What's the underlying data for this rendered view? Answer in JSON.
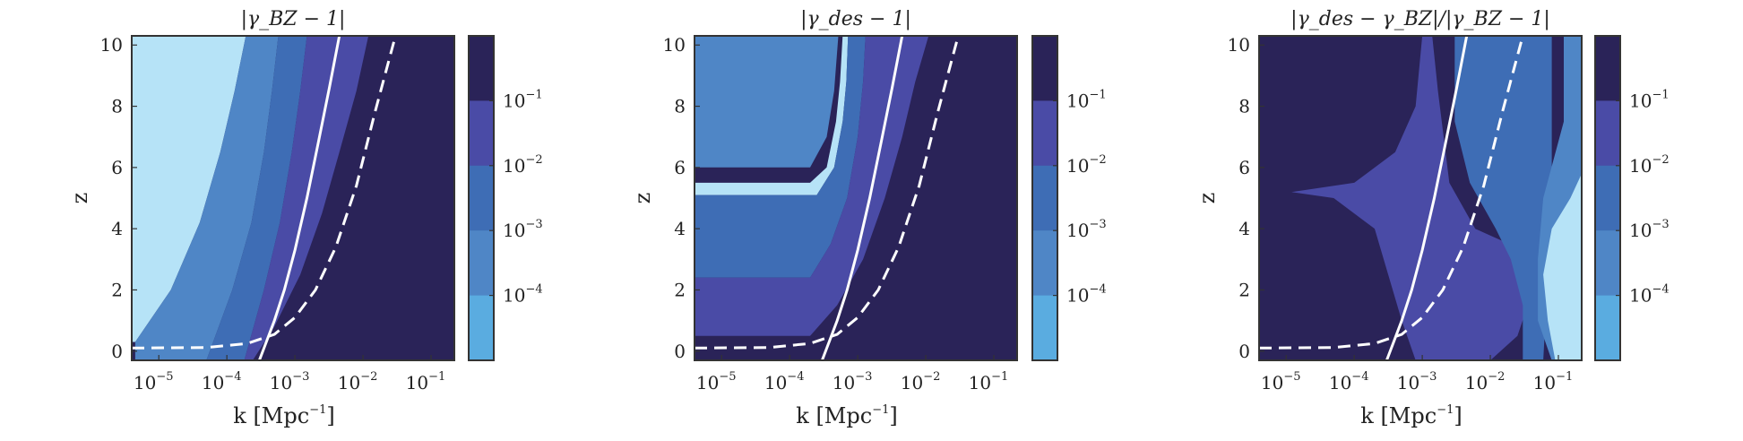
{
  "chart_data": [
    {
      "type": "heatmap",
      "title": "|γ_BZ − 1|",
      "xlabel": "k   [Mpc⁻¹]",
      "ylabel": "z",
      "x_scale": "log",
      "xlim": [
        4e-06,
        0.22
      ],
      "ylim": [
        -0.3,
        10.3
      ],
      "x_ticks": [
        {
          "value": 1e-05,
          "base": "10",
          "exp": "−5"
        },
        {
          "value": 0.0001,
          "base": "10",
          "exp": "−4"
        },
        {
          "value": 0.001,
          "base": "10",
          "exp": "−3"
        },
        {
          "value": 0.01,
          "base": "10",
          "exp": "−2"
        },
        {
          "value": 0.1,
          "base": "10",
          "exp": "−1"
        }
      ],
      "y_ticks": [
        "0",
        "2",
        "4",
        "6",
        "8",
        "10"
      ],
      "colorbar_ticks": [
        {
          "value": 0.1,
          "base": "10",
          "exp": "−1"
        },
        {
          "value": 0.01,
          "base": "10",
          "exp": "−2"
        },
        {
          "value": 0.001,
          "base": "10",
          "exp": "−3"
        },
        {
          "value": 0.0001,
          "base": "10",
          "exp": "−4"
        }
      ],
      "colors": [
        "#b6e3f7",
        "#4f86c6",
        "#3e6db5",
        "#4a4ba6",
        "#2a2358"
      ],
      "lines": [
        {
          "style": "solid",
          "color": "#ffffff",
          "k": [
            0.0003,
            0.00038,
            0.0005,
            0.0007,
            0.001,
            0.0015,
            0.0022,
            0.0032,
            0.0045
          ],
          "z": [
            -0.3,
            0.3,
            1.0,
            2.0,
            3.3,
            5.0,
            6.8,
            8.6,
            10.3
          ]
        },
        {
          "style": "dashed",
          "color": "#ffffff",
          "k": [
            4e-06,
            5e-05,
            0.0002,
            0.0005,
            0.001,
            0.002,
            0.004,
            0.008,
            0.015,
            0.03
          ],
          "z": [
            0.1,
            0.12,
            0.25,
            0.55,
            1.1,
            2.0,
            3.4,
            5.4,
            7.8,
            10.3
          ]
        }
      ]
    },
    {
      "type": "heatmap",
      "title": "|γ_des − 1|",
      "xlabel": "k   [Mpc⁻¹]",
      "ylabel": "z",
      "x_scale": "log",
      "xlim": [
        4e-06,
        0.22
      ],
      "ylim": [
        -0.3,
        10.3
      ],
      "x_ticks": [
        {
          "value": 1e-05,
          "base": "10",
          "exp": "−5"
        },
        {
          "value": 0.0001,
          "base": "10",
          "exp": "−4"
        },
        {
          "value": 0.001,
          "base": "10",
          "exp": "−3"
        },
        {
          "value": 0.01,
          "base": "10",
          "exp": "−2"
        },
        {
          "value": 0.1,
          "base": "10",
          "exp": "−1"
        }
      ],
      "y_ticks": [
        "0",
        "2",
        "4",
        "6",
        "8",
        "10"
      ],
      "colorbar_ticks": [
        {
          "value": 0.1,
          "base": "10",
          "exp": "−1"
        },
        {
          "value": 0.01,
          "base": "10",
          "exp": "−2"
        },
        {
          "value": 0.001,
          "base": "10",
          "exp": "−3"
        },
        {
          "value": 0.0001,
          "base": "10",
          "exp": "−4"
        }
      ],
      "colors": [
        "#b6e3f7",
        "#4f86c6",
        "#3e6db5",
        "#4a4ba6",
        "#2a2358"
      ],
      "lines": [
        {
          "style": "solid",
          "color": "#ffffff",
          "k": [
            0.0003,
            0.00038,
            0.0005,
            0.0007,
            0.001,
            0.0015,
            0.0022,
            0.0032,
            0.0045
          ],
          "z": [
            -0.3,
            0.3,
            1.0,
            2.0,
            3.3,
            5.0,
            6.8,
            8.6,
            10.3
          ]
        },
        {
          "style": "dashed",
          "color": "#ffffff",
          "k": [
            4e-06,
            5e-05,
            0.0002,
            0.0005,
            0.001,
            0.002,
            0.004,
            0.008,
            0.015,
            0.03
          ],
          "z": [
            0.1,
            0.12,
            0.25,
            0.55,
            1.1,
            2.0,
            3.4,
            5.4,
            7.8,
            10.3
          ]
        }
      ]
    },
    {
      "type": "heatmap",
      "title": "|γ_des − γ_BZ|/|γ_BZ − 1|",
      "xlabel": "k   [Mpc⁻¹]",
      "ylabel": "z",
      "x_scale": "log",
      "xlim": [
        4e-06,
        0.22
      ],
      "ylim": [
        -0.3,
        10.3
      ],
      "x_ticks": [
        {
          "value": 1e-05,
          "base": "10",
          "exp": "−5"
        },
        {
          "value": 0.0001,
          "base": "10",
          "exp": "−4"
        },
        {
          "value": 0.001,
          "base": "10",
          "exp": "−3"
        },
        {
          "value": 0.01,
          "base": "10",
          "exp": "−2"
        },
        {
          "value": 0.1,
          "base": "10",
          "exp": "−1"
        }
      ],
      "y_ticks": [
        "0",
        "2",
        "4",
        "6",
        "8",
        "10"
      ],
      "colorbar_ticks": [
        {
          "value": 0.1,
          "base": "10",
          "exp": "−1"
        },
        {
          "value": 0.01,
          "base": "10",
          "exp": "−2"
        },
        {
          "value": 0.001,
          "base": "10",
          "exp": "−3"
        },
        {
          "value": 0.0001,
          "base": "10",
          "exp": "−4"
        }
      ],
      "colors": [
        "#b6e3f7",
        "#4f86c6",
        "#3e6db5",
        "#4a4ba6",
        "#2a2358"
      ],
      "lines": [
        {
          "style": "solid",
          "color": "#ffffff",
          "k": [
            0.0003,
            0.00038,
            0.0005,
            0.0007,
            0.001,
            0.0015,
            0.0022,
            0.0032,
            0.0045
          ],
          "z": [
            -0.3,
            0.3,
            1.0,
            2.0,
            3.3,
            5.0,
            6.8,
            8.6,
            10.3
          ]
        },
        {
          "style": "dashed",
          "color": "#ffffff",
          "k": [
            4e-06,
            5e-05,
            0.0002,
            0.0005,
            0.001,
            0.002,
            0.004,
            0.008,
            0.015,
            0.03
          ],
          "z": [
            0.1,
            0.12,
            0.25,
            0.55,
            1.1,
            2.0,
            3.4,
            5.4,
            7.8,
            10.3
          ]
        }
      ]
    }
  ]
}
